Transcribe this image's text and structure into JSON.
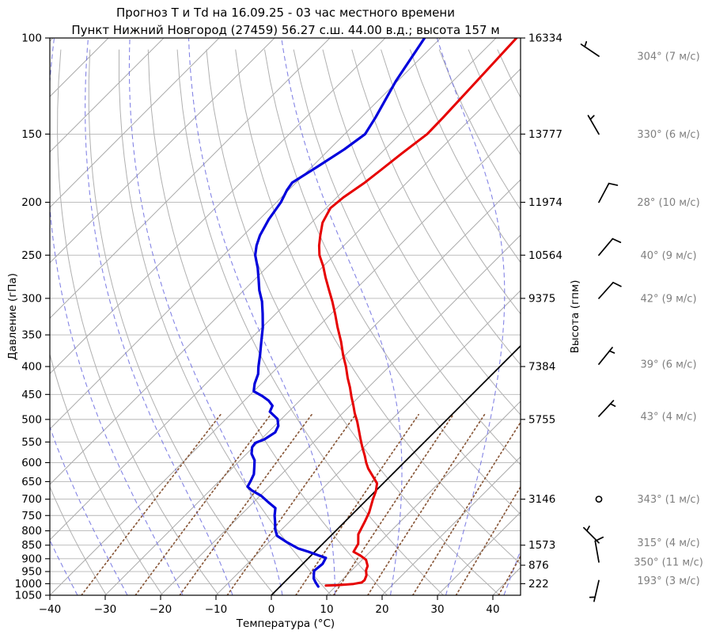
{
  "title": {
    "line1": "Прогноз Т и Td на 16.09.25 - 03 час местного времени",
    "line2": "Пункт Нижний Новгород (27459) 56.27 с.ш. 44.00 в.д.; высота 157 м"
  },
  "axes": {
    "x_label": "Температура (°C)",
    "y_left_label": "Давление (гПа)",
    "y_right_label": "Высота (гпм)",
    "pressure_ticks": [
      100,
      150,
      200,
      250,
      300,
      350,
      400,
      450,
      500,
      550,
      600,
      650,
      700,
      750,
      800,
      850,
      900,
      950,
      1000,
      1050
    ],
    "temp_ticks": [
      -40,
      -30,
      -20,
      -10,
      0,
      10,
      20,
      30,
      40
    ],
    "temp_range": [
      -40,
      45
    ],
    "pressure_range": [
      100,
      1050
    ],
    "y_scale": "log"
  },
  "chart_data": {
    "type": "line",
    "subtype": "skew-t-log-p",
    "skew_deg": 45,
    "point_format": "[pressure_hPa, temperature_C]",
    "series": [
      {
        "name": "temperature",
        "color": "#e60000",
        "points": [
          [
            1008,
            8.1
          ],
          [
            1006,
            10.1
          ],
          [
            1001,
            12.8
          ],
          [
            995,
            14.0
          ],
          [
            985,
            14.1
          ],
          [
            966,
            13.6
          ],
          [
            945,
            12.6
          ],
          [
            928,
            12.1
          ],
          [
            904,
            10.7
          ],
          [
            888,
            8.9
          ],
          [
            874,
            7.0
          ],
          [
            845,
            6.4
          ],
          [
            812,
            4.7
          ],
          [
            770,
            3.6
          ],
          [
            740,
            2.7
          ],
          [
            700,
            1.0
          ],
          [
            677,
            0.1
          ],
          [
            655,
            -1.1
          ],
          [
            636,
            -3.1
          ],
          [
            615,
            -5.4
          ],
          [
            600,
            -6.8
          ],
          [
            583,
            -8.3
          ],
          [
            562,
            -10.3
          ],
          [
            543,
            -12.1
          ],
          [
            522,
            -14.1
          ],
          [
            505,
            -15.8
          ],
          [
            487,
            -17.8
          ],
          [
            470,
            -19.6
          ],
          [
            455,
            -21.3
          ],
          [
            437,
            -23.3
          ],
          [
            420,
            -25.4
          ],
          [
            400,
            -27.8
          ],
          [
            381,
            -30.4
          ],
          [
            360,
            -33.2
          ],
          [
            339,
            -36.4
          ],
          [
            322,
            -39.0
          ],
          [
            304,
            -42.0
          ],
          [
            290,
            -44.6
          ],
          [
            275,
            -47.5
          ],
          [
            262,
            -50.0
          ],
          [
            250,
            -52.7
          ],
          [
            240,
            -54.5
          ],
          [
            230,
            -56.1
          ],
          [
            218,
            -58.0
          ],
          [
            205,
            -59.2
          ],
          [
            196,
            -58.8
          ],
          [
            184,
            -57.6
          ],
          [
            175,
            -57.0
          ],
          [
            163,
            -56.2
          ],
          [
            150,
            -55.1
          ],
          [
            140,
            -55.2
          ],
          [
            120,
            -55.7
          ],
          [
            100,
            -56.3
          ]
        ]
      },
      {
        "name": "dewpoint",
        "color": "#0000dc",
        "points": [
          [
            1012,
            6.9
          ],
          [
            995,
            5.7
          ],
          [
            978,
            4.6
          ],
          [
            947,
            3.3
          ],
          [
            920,
            3.6
          ],
          [
            897,
            3.1
          ],
          [
            888,
            1.4
          ],
          [
            874,
            -1.1
          ],
          [
            862,
            -3.6
          ],
          [
            840,
            -6.7
          ],
          [
            817,
            -9.7
          ],
          [
            795,
            -11.2
          ],
          [
            770,
            -12.6
          ],
          [
            750,
            -13.8
          ],
          [
            727,
            -15.0
          ],
          [
            710,
            -17.2
          ],
          [
            690,
            -19.8
          ],
          [
            675,
            -22.4
          ],
          [
            664,
            -23.9
          ],
          [
            650,
            -24.3
          ],
          [
            630,
            -25.0
          ],
          [
            610,
            -26.3
          ],
          [
            594,
            -27.4
          ],
          [
            578,
            -29.1
          ],
          [
            562,
            -30.2
          ],
          [
            552,
            -30.4
          ],
          [
            544,
            -29.4
          ],
          [
            528,
            -28.7
          ],
          [
            514,
            -29.3
          ],
          [
            499,
            -30.7
          ],
          [
            484,
            -33.4
          ],
          [
            472,
            -34.0
          ],
          [
            462,
            -35.6
          ],
          [
            453,
            -37.6
          ],
          [
            444,
            -40.0
          ],
          [
            430,
            -41.2
          ],
          [
            413,
            -42.3
          ],
          [
            400,
            -43.6
          ],
          [
            381,
            -45.4
          ],
          [
            360,
            -47.6
          ],
          [
            339,
            -49.9
          ],
          [
            320,
            -52.4
          ],
          [
            304,
            -54.7
          ],
          [
            290,
            -57.2
          ],
          [
            277,
            -59.3
          ],
          [
            264,
            -61.5
          ],
          [
            250,
            -64.3
          ],
          [
            240,
            -65.8
          ],
          [
            230,
            -67.0
          ],
          [
            215,
            -68.3
          ],
          [
            200,
            -69.2
          ],
          [
            190,
            -70.3
          ],
          [
            184,
            -70.7
          ],
          [
            172,
            -69.0
          ],
          [
            160,
            -67.3
          ],
          [
            150,
            -66.3
          ],
          [
            140,
            -67.4
          ],
          [
            120,
            -70.3
          ],
          [
            100,
            -72.9
          ]
        ]
      }
    ],
    "height_labels": [
      {
        "pressure": 100,
        "label": "16334"
      },
      {
        "pressure": 150,
        "label": "13777"
      },
      {
        "pressure": 200,
        "label": "11974"
      },
      {
        "pressure": 250,
        "label": "10564"
      },
      {
        "pressure": 300,
        "label": "9375"
      },
      {
        "pressure": 400,
        "label": "7384"
      },
      {
        "pressure": 500,
        "label": "5755"
      },
      {
        "pressure": 700,
        "label": "3146"
      },
      {
        "pressure": 850,
        "label": "1573"
      },
      {
        "pressure": 925,
        "label": "876"
      },
      {
        "pressure": 1000,
        "label": "222"
      }
    ],
    "wind_barbs": [
      {
        "pressure": 100,
        "dir": 304,
        "speed": 7,
        "label": "304° (7 м/с)",
        "dy": 23
      },
      {
        "pressure": 150,
        "dir": 330,
        "speed": 6,
        "label": "330° (6 м/с)",
        "dy": 0
      },
      {
        "pressure": 200,
        "dir": 28,
        "speed": 10,
        "label": "28° (10 м/с)",
        "dy": 0
      },
      {
        "pressure": 250,
        "dir": 40,
        "speed": 9,
        "label": "40° (9 м/с)",
        "dy": 0
      },
      {
        "pressure": 300,
        "dir": 42,
        "speed": 9,
        "label": "42° (9 м/с)",
        "dy": 0
      },
      {
        "pressure": 400,
        "dir": 39,
        "speed": 6,
        "label": "39° (6 м/с)",
        "dy": -3
      },
      {
        "pressure": 500,
        "dir": 43,
        "speed": 4,
        "label": "43° (4 м/с)",
        "dy": -4
      },
      {
        "pressure": 700,
        "dir": 343,
        "speed": 1,
        "label": "343° (1 м/с)",
        "dy": 0
      },
      {
        "pressure": 850,
        "dir": 315,
        "speed": 4,
        "label": "315° (4 м/с)",
        "dy": -3
      },
      {
        "pressure": 925,
        "dir": 350,
        "speed": 11,
        "label": "350° (11 м/с)",
        "dy": -4
      },
      {
        "pressure": 1000,
        "dir": 193,
        "speed": 3,
        "label": "193° (3 м/с)",
        "dy": -4
      }
    ],
    "background": {
      "isotherm_step_C": 10,
      "zero_isotherm_C": 0,
      "dry_adiabats_theta_K": [
        220,
        230,
        240,
        250,
        260,
        270,
        280,
        290,
        300,
        310,
        320,
        330,
        340,
        350,
        360,
        370,
        380,
        390,
        400,
        410,
        420,
        430
      ],
      "moist_adiabats_start_C": [
        -44,
        -35,
        -26,
        -16,
        -7,
        2,
        11.5,
        21.5,
        31.5,
        42
      ],
      "mixing_ratio_g_kg": [
        0.2,
        0.5,
        1,
        2,
        5,
        8,
        12,
        20,
        32,
        50
      ],
      "mixing_ratio_top_hPa": 480
    },
    "colors": {
      "temperature": "#e60000",
      "dewpoint": "#0000dc",
      "isotherm": "#ababab",
      "dry_adiabat": "#b0b0b0",
      "moist_adiabat": "#6f6fe0",
      "mixing_ratio": "#8a5a3c",
      "grid": "#b5b5b5",
      "zero_isotherm": "#000000",
      "wind_label": "#7f7f7f",
      "spine": "#000000",
      "tick_text": "#000000"
    }
  }
}
